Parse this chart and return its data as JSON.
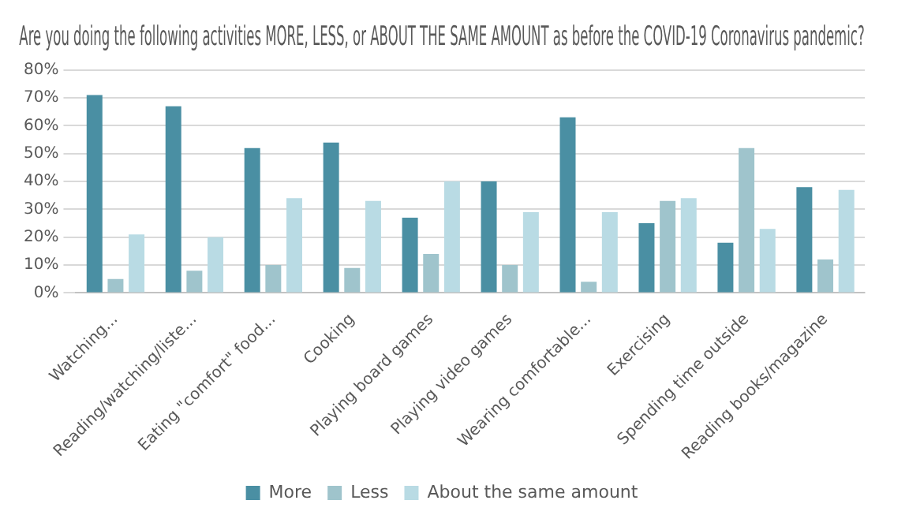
{
  "chart_data": {
    "type": "bar",
    "title": "Are you doing the following activities MORE, LESS, or ABOUT THE SAME AMOUNT as before the COVID-19 Coronavirus pandemic?",
    "categories": [
      "Watching...",
      "Reading/watching/liste...",
      "Eating \"comfort\" food...",
      "Cooking",
      "Playing board games",
      "Playing video games",
      "Wearing comfortable...",
      "Exercising",
      "Spending time outside",
      "Reading books/magazine"
    ],
    "series": [
      {
        "name": "More",
        "color": "#4a8fa3",
        "values": [
          71,
          67,
          52,
          54,
          27,
          40,
          63,
          25,
          18,
          38
        ]
      },
      {
        "name": "Less",
        "color": "#9fc4cc",
        "values": [
          5,
          8,
          10,
          9,
          14,
          10,
          4,
          33,
          52,
          12
        ]
      },
      {
        "name": "About the same amount",
        "color": "#b9dbe4",
        "values": [
          21,
          20,
          34,
          33,
          40,
          29,
          29,
          34,
          23,
          37
        ]
      }
    ],
    "ylim": [
      0,
      80
    ],
    "yticks": [
      {
        "value": 0,
        "label": "0%"
      },
      {
        "value": 10,
        "label": "10%"
      },
      {
        "value": 20,
        "label": "20%"
      },
      {
        "value": 30,
        "label": "30%"
      },
      {
        "value": 40,
        "label": "40%"
      },
      {
        "value": 50,
        "label": "50%"
      },
      {
        "value": 60,
        "label": "60%"
      },
      {
        "value": 70,
        "label": "70%"
      },
      {
        "value": 80,
        "label": "80%"
      }
    ],
    "grid": "y",
    "legend": "bottom"
  }
}
